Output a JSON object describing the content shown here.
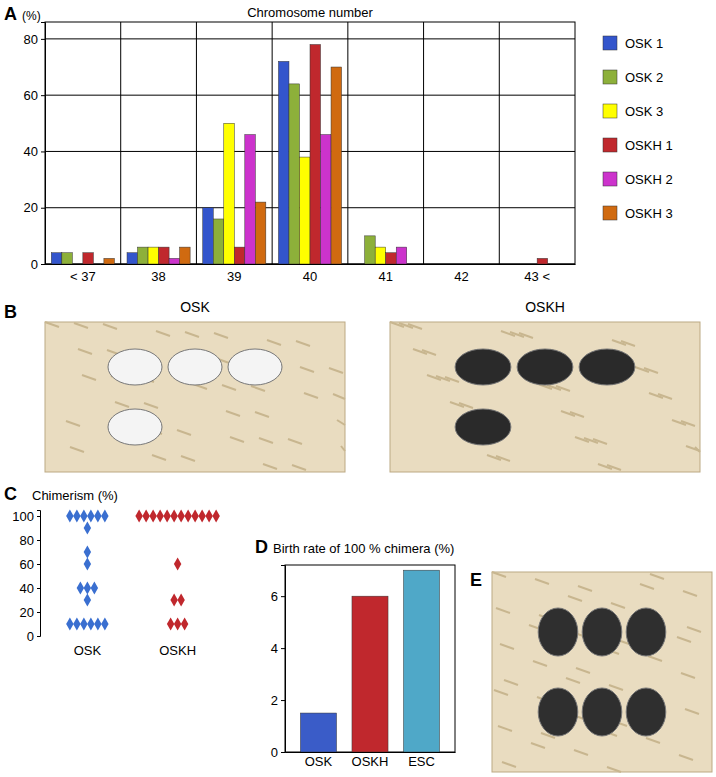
{
  "chart_data": [
    {
      "panel": "A",
      "type": "bar",
      "title": "Chromosome number",
      "ylabel": "(%)",
      "categories": [
        "< 37",
        "38",
        "39",
        "40",
        "41",
        "42",
        "43 <"
      ],
      "series": [
        {
          "name": "OSK 1",
          "color": "#3355cc",
          "values": [
            4,
            4,
            20,
            72,
            0,
            0,
            0
          ]
        },
        {
          "name": "OSK 2",
          "color": "#8db03a",
          "values": [
            4,
            6,
            16,
            64,
            10,
            0,
            0
          ]
        },
        {
          "name": "OSK 3",
          "color": "#ffff00",
          "values": [
            0,
            6,
            50,
            38,
            6,
            0,
            0
          ]
        },
        {
          "name": "OSKH 1",
          "color": "#c0282d",
          "values": [
            4,
            6,
            6,
            78,
            4,
            0,
            2
          ]
        },
        {
          "name": "OSKH 2",
          "color": "#cc33cc",
          "values": [
            0,
            2,
            46,
            46,
            6,
            0,
            0
          ]
        },
        {
          "name": "OSKH 3",
          "color": "#d06a10",
          "values": [
            2,
            6,
            22,
            70,
            0,
            0,
            0
          ]
        }
      ],
      "ylim": [
        0,
        86
      ],
      "yticks": [
        0,
        20,
        40,
        60,
        80
      ],
      "grid": true,
      "legend": "right"
    },
    {
      "panel": "C",
      "type": "strip",
      "title": "Chimerism (%)",
      "categories": [
        "OSK",
        "OSKH"
      ],
      "values": [
        [
          100,
          100,
          100,
          100,
          100,
          100,
          90,
          70,
          60,
          40,
          40,
          40,
          30,
          10,
          10,
          10,
          10,
          10,
          10
        ],
        [
          100,
          100,
          100,
          100,
          100,
          100,
          100,
          100,
          100,
          100,
          100,
          100,
          60,
          30,
          30,
          10,
          10,
          10
        ]
      ],
      "colors": [
        "#3a6fd0",
        "#c0282d"
      ],
      "marker": "diamond",
      "ylim": [
        0,
        105
      ],
      "yticks": [
        0,
        20,
        40,
        60,
        80,
        100
      ]
    },
    {
      "panel": "D",
      "type": "bar",
      "title": "Birth rate of 100 % chimera (%)",
      "categories": [
        "OSK",
        "OSKH",
        "ESC"
      ],
      "values": [
        1.5,
        6,
        7
      ],
      "colors": [
        "#3a5cc8",
        "#c0282d",
        "#4fa8c8"
      ],
      "ylim": [
        0,
        7.2
      ],
      "yticks": [
        0,
        2,
        4,
        6
      ],
      "grid": false
    }
  ],
  "photos": [
    {
      "panel": "B",
      "captions": [
        "OSK",
        "OSKH"
      ]
    },
    {
      "panel": "E"
    }
  ]
}
